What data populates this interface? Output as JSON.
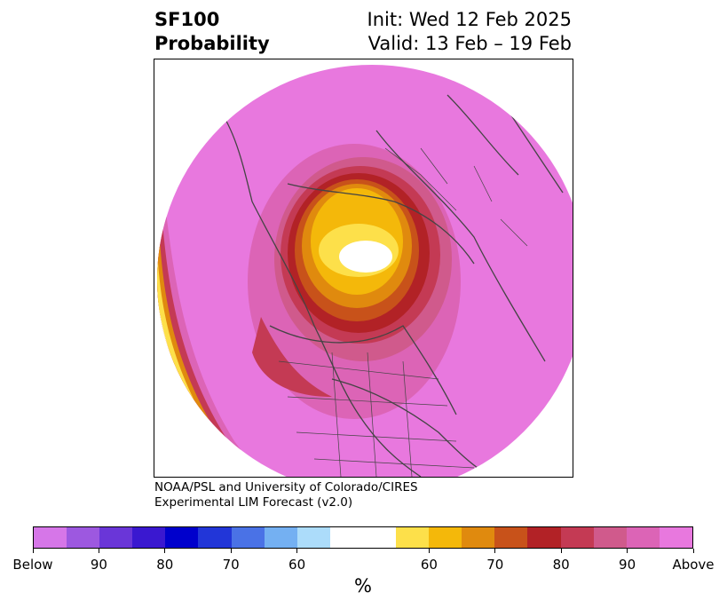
{
  "header": {
    "variable": "SF100",
    "product": "Probability",
    "init": "Init: Wed 12 Feb 2025",
    "valid": "Valid: 13 Feb – 19 Feb"
  },
  "credit": {
    "line1": "NOAA/PSL and University of Colorado/CIRES",
    "line2": "Experimental LIM Forecast (v2.0)"
  },
  "colorbar": {
    "unit": "%",
    "colors": [
      "#d676e8",
      "#9d58e0",
      "#6a36d8",
      "#3a18d0",
      "#0000cc",
      "#2236d8",
      "#4a72e6",
      "#74b0f2",
      "#acdcfa",
      "#ffffff",
      "#ffffff",
      "#fde04a",
      "#f4b80a",
      "#e08a0e",
      "#c8521a",
      "#b22226",
      "#c43a54",
      "#d05a8c",
      "#dc64b6",
      "#e878de"
    ],
    "ticks": [
      "Below",
      "90",
      "80",
      "70",
      "60",
      "60",
      "70",
      "80",
      "90",
      "Above"
    ]
  },
  "map": {
    "colors": {
      "above_max": "#e878de",
      "above_90": "#dc64b6",
      "above_85": "#d05a8c",
      "above_80": "#c43a54",
      "above_75": "#b22226",
      "above_70": "#c8521a",
      "above_65": "#e08a0e",
      "above_60": "#f4b80a",
      "above_55": "#fde04a",
      "near_normal": "#ffffff",
      "below_blue": "#0000cc",
      "coastline": "#444444"
    }
  }
}
